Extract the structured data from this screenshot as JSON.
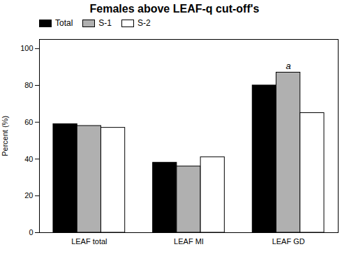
{
  "chart_data": {
    "type": "bar",
    "title": "Females above LEAF-q cut-off's",
    "ylabel": "Percent (%)",
    "categories": [
      "LEAF total",
      "LEAF MI",
      "LEAF GD"
    ],
    "series": [
      {
        "name": "Total",
        "color": "#000000",
        "values": [
          59,
          38,
          80
        ]
      },
      {
        "name": "S-1",
        "color": "#b0b0b0",
        "values": [
          58,
          36,
          87
        ]
      },
      {
        "name": "S-2",
        "color": "#ffffff",
        "values": [
          57,
          41,
          65
        ]
      }
    ],
    "ylim": [
      0,
      105
    ],
    "yticks": [
      0,
      20,
      40,
      60,
      80,
      100
    ],
    "legend": "upper left",
    "annotations": [
      {
        "text": "a",
        "category": "LEAF GD",
        "series": "S-1"
      }
    ]
  }
}
